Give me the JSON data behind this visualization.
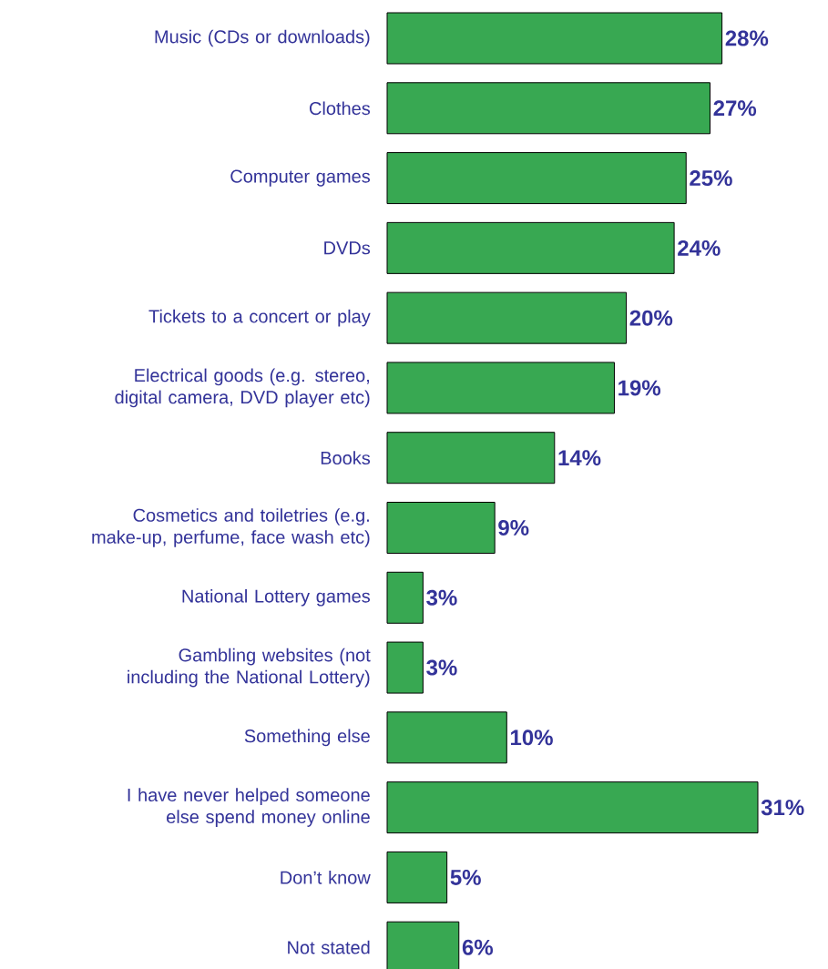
{
  "chart_data": {
    "type": "bar",
    "orientation": "horizontal",
    "color": "#38a852",
    "categories": [
      "Music (CDs or downloads)",
      "Clothes",
      "Computer games",
      "DVDs",
      "Tickets to a concert or play",
      "Electrical goods (e.g. stereo, digital camera, DVD player etc)",
      "Books",
      "Cosmetics and toiletries (e.g. make-up, perfume, face wash etc)",
      "National Lottery games",
      "Gambling websites (not including the National Lottery)",
      "Something else",
      "I have never helped someone else spend money online",
      "Don’t know",
      "Not stated"
    ],
    "values": [
      28,
      27,
      25,
      24,
      20,
      19,
      14,
      9,
      3,
      3,
      10,
      31,
      5,
      6
    ],
    "value_labels": [
      "28%",
      "27%",
      "25%",
      "24%",
      "20%",
      "19%",
      "14%",
      "9%",
      "3%",
      "3%",
      "10%",
      "31%",
      "5%",
      "6%"
    ]
  }
}
